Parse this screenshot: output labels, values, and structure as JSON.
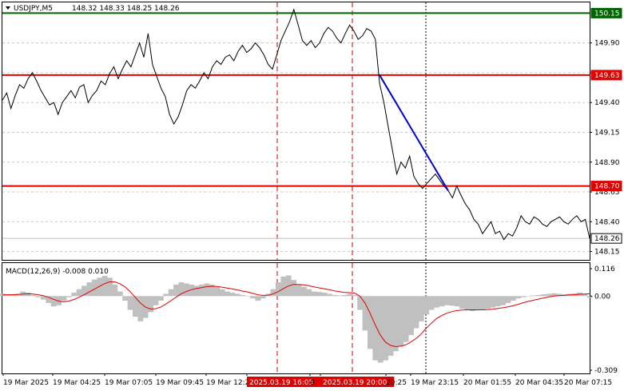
{
  "header": {
    "symbol": "USDJPY,M5",
    "ohlc": "148.32 148.33 148.25 148.26"
  },
  "macd": {
    "label": "MACD(12,26,9) -0.008 0.010",
    "ticks": [
      "0.116",
      "0.00",
      "-0.309"
    ]
  },
  "colors": {
    "price_line": "#000000",
    "support_resistance": "#e00000",
    "top_level": "#006400",
    "trend_line": "#0000cc",
    "histogram": "#c0c0c0",
    "signal": "#e00000"
  },
  "chart_data": [
    {
      "type": "line",
      "title": "USDJPY,M5",
      "y_ticks": [
        "149.90",
        "149.65",
        "149.40",
        "149.15",
        "148.90",
        "148.65",
        "148.40",
        "148.15"
      ],
      "ylim": [
        148.08,
        150.24
      ],
      "levels": [
        {
          "label": "150.15",
          "value": 150.15,
          "color": "#006400"
        },
        {
          "label": "149.63",
          "value": 149.63,
          "color": "#e00000"
        },
        {
          "label": "148.70",
          "value": 148.7,
          "color": "#e00000"
        },
        {
          "label": "148.26",
          "value": 148.26,
          "color": "#c0c0c0"
        }
      ],
      "x_labels": [
        "19 Mar 2025",
        "19 Mar 04:25",
        "19 Mar 07:05",
        "19 Mar 09:45",
        "19 Mar 12:2",
        "2025.03.19 16:05",
        "9",
        "2025.03.19 20:00",
        "20:25",
        "19 Mar 23:15",
        "20 Mar 01:55",
        "20 Mar 04:35",
        "20 Mar 07:15"
      ],
      "highlighted_x_labels": [
        "2025.03.19 16:05",
        "2025.03.19 20:00"
      ],
      "series": [
        {
          "values": [
            149.42,
            149.48,
            149.35,
            149.46,
            149.55,
            149.52,
            149.6,
            149.65,
            149.58,
            149.5,
            149.44,
            149.38,
            149.4,
            149.3,
            149.4,
            149.45,
            149.5,
            149.44,
            149.53,
            149.55,
            149.4,
            149.46,
            149.5,
            149.58,
            149.55,
            149.64,
            149.7,
            149.6,
            149.68,
            149.75,
            149.7,
            149.8,
            149.9,
            149.78,
            149.98,
            149.72,
            149.62,
            149.52,
            149.45,
            149.3,
            149.22,
            149.28,
            149.38,
            149.5,
            149.55,
            149.52,
            149.58,
            149.65,
            149.6,
            149.7,
            149.75,
            149.72,
            149.78,
            149.8,
            149.75,
            149.83,
            149.88,
            149.82,
            149.85,
            149.9,
            149.86,
            149.8,
            149.72,
            149.68,
            149.8,
            149.92,
            150.0,
            150.08,
            150.18,
            150.05,
            149.92,
            149.88,
            149.92,
            149.86,
            149.9,
            149.98,
            150.03,
            150.0,
            149.94,
            149.9,
            149.98,
            150.05,
            150.0,
            149.93,
            149.96,
            150.02,
            150.0,
            149.93,
            149.56,
            149.4,
            149.2,
            149.0,
            148.8,
            148.9,
            148.85,
            148.95,
            148.78,
            148.72,
            148.68,
            148.72,
            148.76,
            148.8,
            148.75,
            148.7,
            148.66,
            148.6,
            148.7,
            148.62,
            148.55,
            148.5,
            148.42,
            148.38,
            148.3,
            148.35,
            148.4,
            148.3,
            148.32,
            148.25,
            148.3,
            148.28,
            148.35,
            148.45,
            148.4,
            148.38,
            148.44,
            148.42,
            148.38,
            148.36,
            148.4,
            148.42,
            148.44,
            148.4,
            148.38,
            148.42,
            148.45,
            148.4,
            148.42,
            148.26
          ]
        }
      ],
      "trend_line": {
        "from": {
          "index": 88,
          "value": 149.63
        },
        "to": {
          "index": 104,
          "value": 148.66
        }
      }
    },
    {
      "type": "bar",
      "title": "MACD(12,26,9)",
      "ylim": [
        -0.309,
        0.116
      ],
      "series": [
        {
          "name": "histogram",
          "values": [
            0.01,
            0.008,
            0.005,
            0.01,
            0.02,
            0.015,
            0.005,
            -0.005,
            -0.015,
            -0.03,
            -0.045,
            -0.04,
            -0.02,
            -0.005,
            0.015,
            0.03,
            0.045,
            0.06,
            0.072,
            0.08,
            0.088,
            0.08,
            0.05,
            0.02,
            -0.02,
            -0.06,
            -0.09,
            -0.11,
            -0.095,
            -0.07,
            -0.04,
            -0.02,
            0.01,
            0.03,
            0.05,
            0.06,
            0.055,
            0.05,
            0.045,
            0.05,
            0.055,
            0.05,
            0.04,
            0.03,
            0.02,
            0.015,
            0.01,
            0.005,
            0.0,
            -0.01,
            -0.02,
            -0.01,
            0.01,
            0.03,
            0.06,
            0.085,
            0.09,
            0.07,
            0.05,
            0.04,
            0.03,
            0.02,
            0.018,
            0.015,
            0.01,
            0.005,
            0.003,
            0.005,
            0.01,
            0.005,
            -0.06,
            -0.15,
            -0.23,
            -0.28,
            -0.29,
            -0.28,
            -0.26,
            -0.24,
            -0.22,
            -0.2,
            -0.17,
            -0.14,
            -0.11,
            -0.08,
            -0.06,
            -0.05,
            -0.045,
            -0.04,
            -0.042,
            -0.045,
            -0.055,
            -0.06,
            -0.065,
            -0.062,
            -0.058,
            -0.055,
            -0.05,
            -0.045,
            -0.04,
            -0.03,
            -0.02,
            -0.01,
            -0.005,
            0.0,
            0.003,
            0.005,
            0.008,
            0.01,
            0.012,
            0.01,
            0.008,
            0.01,
            0.012,
            0.015,
            0.01,
            -0.008
          ]
        },
        {
          "name": "signal",
          "values": [
            0.005,
            0.006,
            0.006,
            0.007,
            0.009,
            0.01,
            0.009,
            0.006,
            0.002,
            -0.005,
            -0.014,
            -0.022,
            -0.025,
            -0.022,
            -0.015,
            -0.005,
            0.006,
            0.018,
            0.03,
            0.042,
            0.054,
            0.062,
            0.062,
            0.054,
            0.04,
            0.02,
            -0.005,
            -0.03,
            -0.048,
            -0.056,
            -0.055,
            -0.048,
            -0.035,
            -0.02,
            -0.005,
            0.01,
            0.02,
            0.028,
            0.033,
            0.037,
            0.041,
            0.043,
            0.042,
            0.039,
            0.035,
            0.031,
            0.027,
            0.022,
            0.018,
            0.012,
            0.006,
            0.003,
            0.004,
            0.009,
            0.019,
            0.032,
            0.044,
            0.051,
            0.051,
            0.049,
            0.045,
            0.04,
            0.036,
            0.032,
            0.028,
            0.023,
            0.019,
            0.016,
            0.015,
            0.013,
            0.0,
            -0.03,
            -0.075,
            -0.125,
            -0.17,
            -0.2,
            -0.215,
            -0.22,
            -0.218,
            -0.212,
            -0.2,
            -0.185,
            -0.165,
            -0.14,
            -0.118,
            -0.098,
            -0.085,
            -0.075,
            -0.068,
            -0.063,
            -0.061,
            -0.06,
            -0.06,
            -0.06,
            -0.06,
            -0.059,
            -0.057,
            -0.054,
            -0.051,
            -0.047,
            -0.042,
            -0.036,
            -0.029,
            -0.023,
            -0.018,
            -0.013,
            -0.008,
            -0.004,
            0.0,
            0.002,
            0.003,
            0.005,
            0.006,
            0.008,
            0.009,
            0.01
          ]
        }
      ]
    }
  ]
}
